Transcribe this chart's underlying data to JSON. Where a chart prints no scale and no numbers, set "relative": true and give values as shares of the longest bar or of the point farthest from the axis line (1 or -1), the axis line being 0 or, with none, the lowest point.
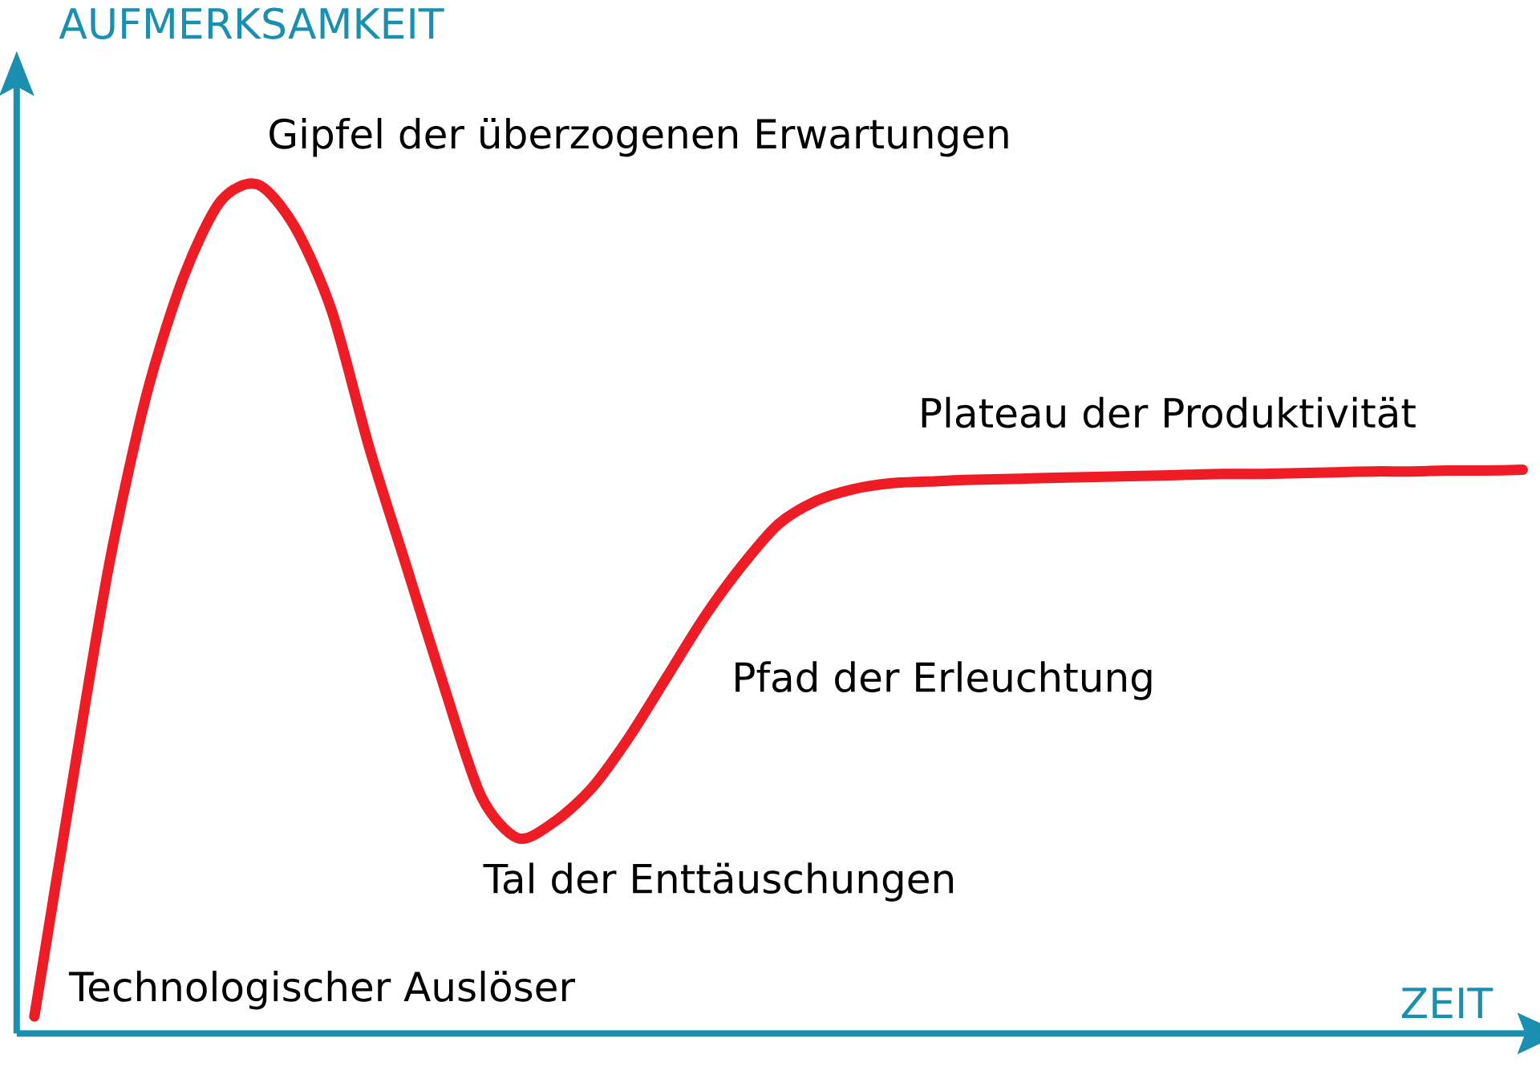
{
  "chart_data": {
    "type": "line",
    "relative": true,
    "xlabel": "ZEIT",
    "ylabel": "AUFMERKSAMKEIT",
    "color": "#ee1c25",
    "categories": [
      null,
      null,
      null,
      null,
      null,
      null,
      null,
      null,
      null,
      null,
      null,
      null,
      null,
      null,
      null,
      null,
      null,
      null,
      null,
      null,
      null,
      null,
      null,
      null,
      null,
      null,
      null,
      null,
      null,
      null,
      null,
      null,
      null,
      null,
      null,
      null,
      null,
      null,
      null,
      null,
      null
    ],
    "values": [
      0.02,
      0.29,
      0.55,
      0.75,
      0.89,
      0.98,
      1,
      0.95,
      0.85,
      0.69,
      0.55,
      0.41,
      0.28,
      0.23,
      0.25,
      0.29,
      0.35,
      0.42,
      0.49,
      0.55,
      0.6,
      0.627,
      0.641,
      0.648,
      0.65,
      0.652,
      0.653,
      0.654,
      0.655,
      0.656,
      0.657,
      0.658,
      0.659,
      0.659,
      0.66,
      0.661,
      0.662,
      0.662,
      0.663,
      0.663,
      0.664
    ],
    "annotations": [
      "Gipfel der überzogenen Erwartungen",
      "Plateau der Produktivität",
      "Pfad der Erleuchtung",
      "Tal der Enttäuschungen",
      "Technologischer Auslöser"
    ]
  }
}
